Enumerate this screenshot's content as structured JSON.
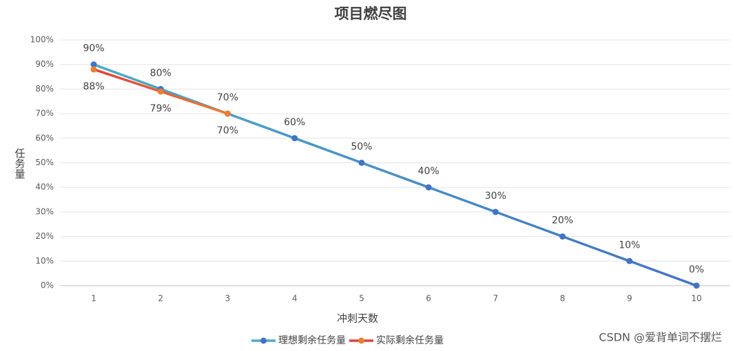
{
  "chart_data": {
    "type": "line",
    "title": "项目燃尽图",
    "xlabel": "冲刺天数",
    "ylabel": "任务量",
    "categories": [
      "1",
      "2",
      "3",
      "4",
      "5",
      "6",
      "7",
      "8",
      "9",
      "10"
    ],
    "series": [
      {
        "name": "理想剩余任务量",
        "color": "#4bacc6",
        "marker_color": "#4472c4",
        "values": [
          90,
          80,
          70,
          60,
          50,
          40,
          30,
          20,
          10,
          0
        ],
        "value_labels": [
          "90%",
          "80%",
          "70%",
          "60%",
          "50%",
          "40%",
          "30%",
          "20%",
          "10%",
          "0%"
        ]
      },
      {
        "name": "实际剩余任务量",
        "color": "#e0413a",
        "marker_color": "#ed7d31",
        "values": [
          88,
          79,
          70,
          null,
          null,
          null,
          null,
          null,
          null,
          null
        ],
        "value_labels": [
          "88%",
          "79%",
          "70%",
          null,
          null,
          null,
          null,
          null,
          null,
          null
        ]
      }
    ],
    "ylim": [
      0,
      100
    ],
    "yticks": [
      {
        "value": 0,
        "label": "0%"
      },
      {
        "value": 10,
        "label": "10%"
      },
      {
        "value": 20,
        "label": "20%"
      },
      {
        "value": 30,
        "label": "30%"
      },
      {
        "value": 40,
        "label": "40%"
      },
      {
        "value": 50,
        "label": "50%"
      },
      {
        "value": 60,
        "label": "60%"
      },
      {
        "value": 70,
        "label": "70%"
      },
      {
        "value": 80,
        "label": "80%"
      },
      {
        "value": 90,
        "label": "90%"
      },
      {
        "value": 100,
        "label": "100%"
      }
    ],
    "grid": true,
    "legend": "bottom",
    "watermark": "CSDN @爱背单词不摆烂"
  }
}
